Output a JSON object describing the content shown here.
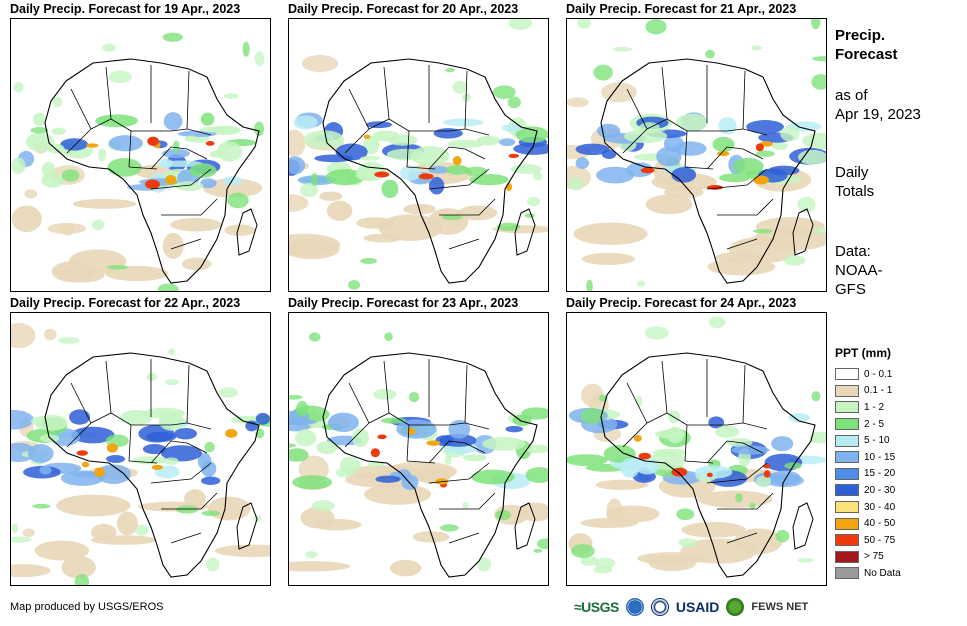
{
  "panels": [
    {
      "title": "Daily Precip. Forecast for 19 Apr., 2023"
    },
    {
      "title": "Daily Precip. Forecast for 20 Apr., 2023"
    },
    {
      "title": "Daily Precip. Forecast for 21 Apr., 2023"
    },
    {
      "title": "Daily Precip. Forecast for 22 Apr., 2023"
    },
    {
      "title": "Daily Precip. Forecast for 23 Apr., 2023"
    },
    {
      "title": "Daily Precip. Forecast for 24 Apr., 2023"
    }
  ],
  "side": {
    "title_line1": "Precip.",
    "title_line2": "Forecast",
    "asof_line1": "as of",
    "asof_line2": "Apr 19, 2023",
    "totals_line1": "Daily",
    "totals_line2": "Totals",
    "data_line1": "Data:",
    "data_line2": "NOAA-",
    "data_line3": "GFS"
  },
  "legend": {
    "title": "PPT (mm)",
    "items": [
      {
        "label": "0 - 0.1",
        "color": "#ffffff"
      },
      {
        "label": "0.1 - 1",
        "color": "#e8d7b8"
      },
      {
        "label": "1 - 2",
        "color": "#c6f5c2"
      },
      {
        "label": "2 - 5",
        "color": "#7ee27a"
      },
      {
        "label": "5 - 10",
        "color": "#b8ecf4"
      },
      {
        "label": "10 - 15",
        "color": "#7fb3f0"
      },
      {
        "label": "15 - 20",
        "color": "#4f8ee8"
      },
      {
        "label": "20 - 30",
        "color": "#2e5fd6"
      },
      {
        "label": "30 - 40",
        "color": "#f9e27a"
      },
      {
        "label": "40 - 50",
        "color": "#f2a50f"
      },
      {
        "label": "50 - 75",
        "color": "#ef3a0c"
      },
      {
        "label": "> 75",
        "color": "#a4171c"
      },
      {
        "label": "No Data",
        "color": "#9a9a9a"
      }
    ]
  },
  "footer": {
    "credit": "Map produced by USGS/EROS",
    "logo_usgs": "≈USGS",
    "logo_usaid": "USAID",
    "logo_fews": "FEWS NET"
  }
}
